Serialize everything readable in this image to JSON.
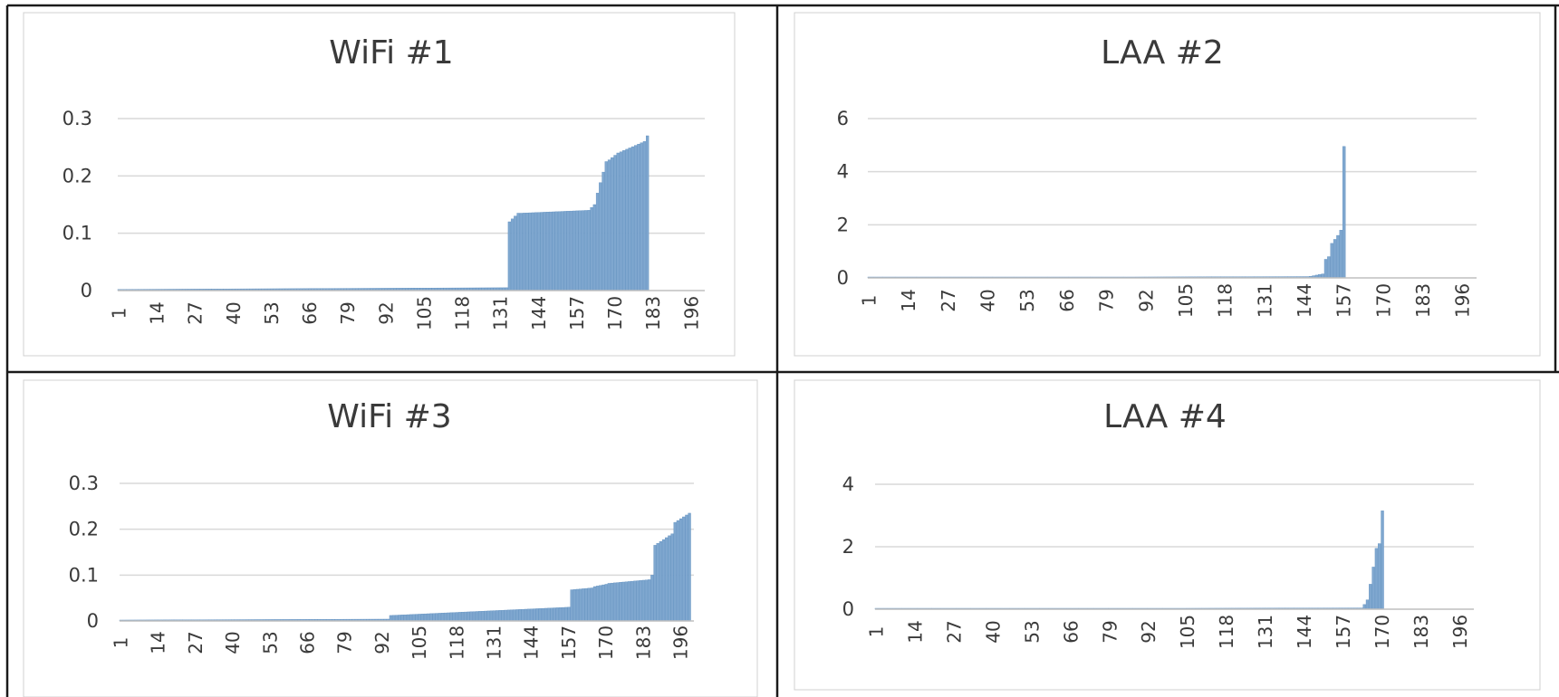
{
  "colors": {
    "bar": "#7fa7cf",
    "bar_edge": "#5f8fbf",
    "grid": "#d9d9d9",
    "axis": "#bfbfbf",
    "text": "#404040",
    "border": "#1a1a1a",
    "frame": "#d0d0d0"
  },
  "chart_data": [
    {
      "type": "bar",
      "title": "WiFi #1",
      "yticks": [
        "0",
        "0.1",
        "0.2",
        "0.3"
      ],
      "ylim": [
        0,
        0.3
      ],
      "xtick_labels": [
        "1",
        "14",
        "27",
        "40",
        "53",
        "66",
        "79",
        "92",
        "105",
        "118",
        "131",
        "144",
        "157",
        "170",
        "183",
        "196"
      ],
      "x": [
        1,
        200
      ],
      "legend": "none",
      "grid": true,
      "segments": [
        {
          "from": 1,
          "to": 133,
          "start": 0.002,
          "end": 0.005
        },
        {
          "from": 134,
          "to": 137,
          "start": 0.12,
          "end": 0.135
        },
        {
          "from": 138,
          "to": 161,
          "start": 0.135,
          "end": 0.14
        },
        {
          "from": 162,
          "to": 163,
          "start": 0.145,
          "end": 0.15
        },
        {
          "from": 164,
          "to": 167,
          "start": 0.17,
          "end": 0.225
        },
        {
          "from": 168,
          "to": 171,
          "start": 0.228,
          "end": 0.24
        },
        {
          "from": 172,
          "to": 180,
          "start": 0.242,
          "end": 0.26
        },
        {
          "from": 181,
          "to": 181,
          "start": 0.27,
          "end": 0.27
        }
      ]
    },
    {
      "type": "bar",
      "title": "LAA #2",
      "yticks": [
        "0",
        "2",
        "4",
        "6"
      ],
      "ylim": [
        0,
        6
      ],
      "xtick_labels": [
        "1",
        "14",
        "27",
        "40",
        "53",
        "66",
        "79",
        "92",
        "105",
        "118",
        "131",
        "144",
        "157",
        "170",
        "183",
        "196"
      ],
      "x": [
        1,
        200
      ],
      "legend": "none",
      "grid": true,
      "segments": [
        {
          "from": 1,
          "to": 145,
          "start": 0.01,
          "end": 0.05
        },
        {
          "from": 146,
          "to": 150,
          "start": 0.06,
          "end": 0.15
        },
        {
          "from": 151,
          "to": 152,
          "start": 0.7,
          "end": 0.8
        },
        {
          "from": 153,
          "to": 155,
          "start": 1.3,
          "end": 1.6
        },
        {
          "from": 156,
          "to": 156,
          "start": 1.8,
          "end": 1.8
        },
        {
          "from": 157,
          "to": 157,
          "start": 4.95,
          "end": 4.95
        }
      ]
    },
    {
      "type": "bar",
      "title": "WiFi #3",
      "yticks": [
        "0",
        "0.1",
        "0.2",
        "0.3"
      ],
      "ylim": [
        0,
        0.3
      ],
      "xtick_labels": [
        "1",
        "14",
        "27",
        "40",
        "53",
        "66",
        "79",
        "92",
        "105",
        "118",
        "131",
        "144",
        "157",
        "170",
        "183",
        "196"
      ],
      "x": [
        1,
        200
      ],
      "legend": "none",
      "grid": true,
      "segments": [
        {
          "from": 1,
          "to": 94,
          "start": 0.002,
          "end": 0.004
        },
        {
          "from": 95,
          "to": 157,
          "start": 0.012,
          "end": 0.03
        },
        {
          "from": 158,
          "to": 165,
          "start": 0.068,
          "end": 0.072
        },
        {
          "from": 166,
          "to": 170,
          "start": 0.075,
          "end": 0.08
        },
        {
          "from": 171,
          "to": 185,
          "start": 0.082,
          "end": 0.09
        },
        {
          "from": 186,
          "to": 186,
          "start": 0.1,
          "end": 0.1
        },
        {
          "from": 187,
          "to": 193,
          "start": 0.165,
          "end": 0.19
        },
        {
          "from": 194,
          "to": 199,
          "start": 0.215,
          "end": 0.235
        }
      ]
    },
    {
      "type": "bar",
      "title": "LAA #4",
      "yticks": [
        "0",
        "2",
        "4"
      ],
      "ylim": [
        0,
        4
      ],
      "xtick_labels": [
        "1",
        "14",
        "27",
        "40",
        "53",
        "66",
        "79",
        "92",
        "105",
        "118",
        "131",
        "144",
        "157",
        "170",
        "183",
        "196"
      ],
      "x": [
        1,
        200
      ],
      "legend": "none",
      "grid": true,
      "segments": [
        {
          "from": 1,
          "to": 163,
          "start": 0.01,
          "end": 0.04
        },
        {
          "from": 164,
          "to": 165,
          "start": 0.15,
          "end": 0.3
        },
        {
          "from": 166,
          "to": 166,
          "start": 0.8,
          "end": 0.8
        },
        {
          "from": 167,
          "to": 167,
          "start": 1.35,
          "end": 1.35
        },
        {
          "from": 168,
          "to": 169,
          "start": 1.95,
          "end": 2.1
        },
        {
          "from": 170,
          "to": 170,
          "start": 3.15,
          "end": 3.15
        }
      ]
    }
  ]
}
